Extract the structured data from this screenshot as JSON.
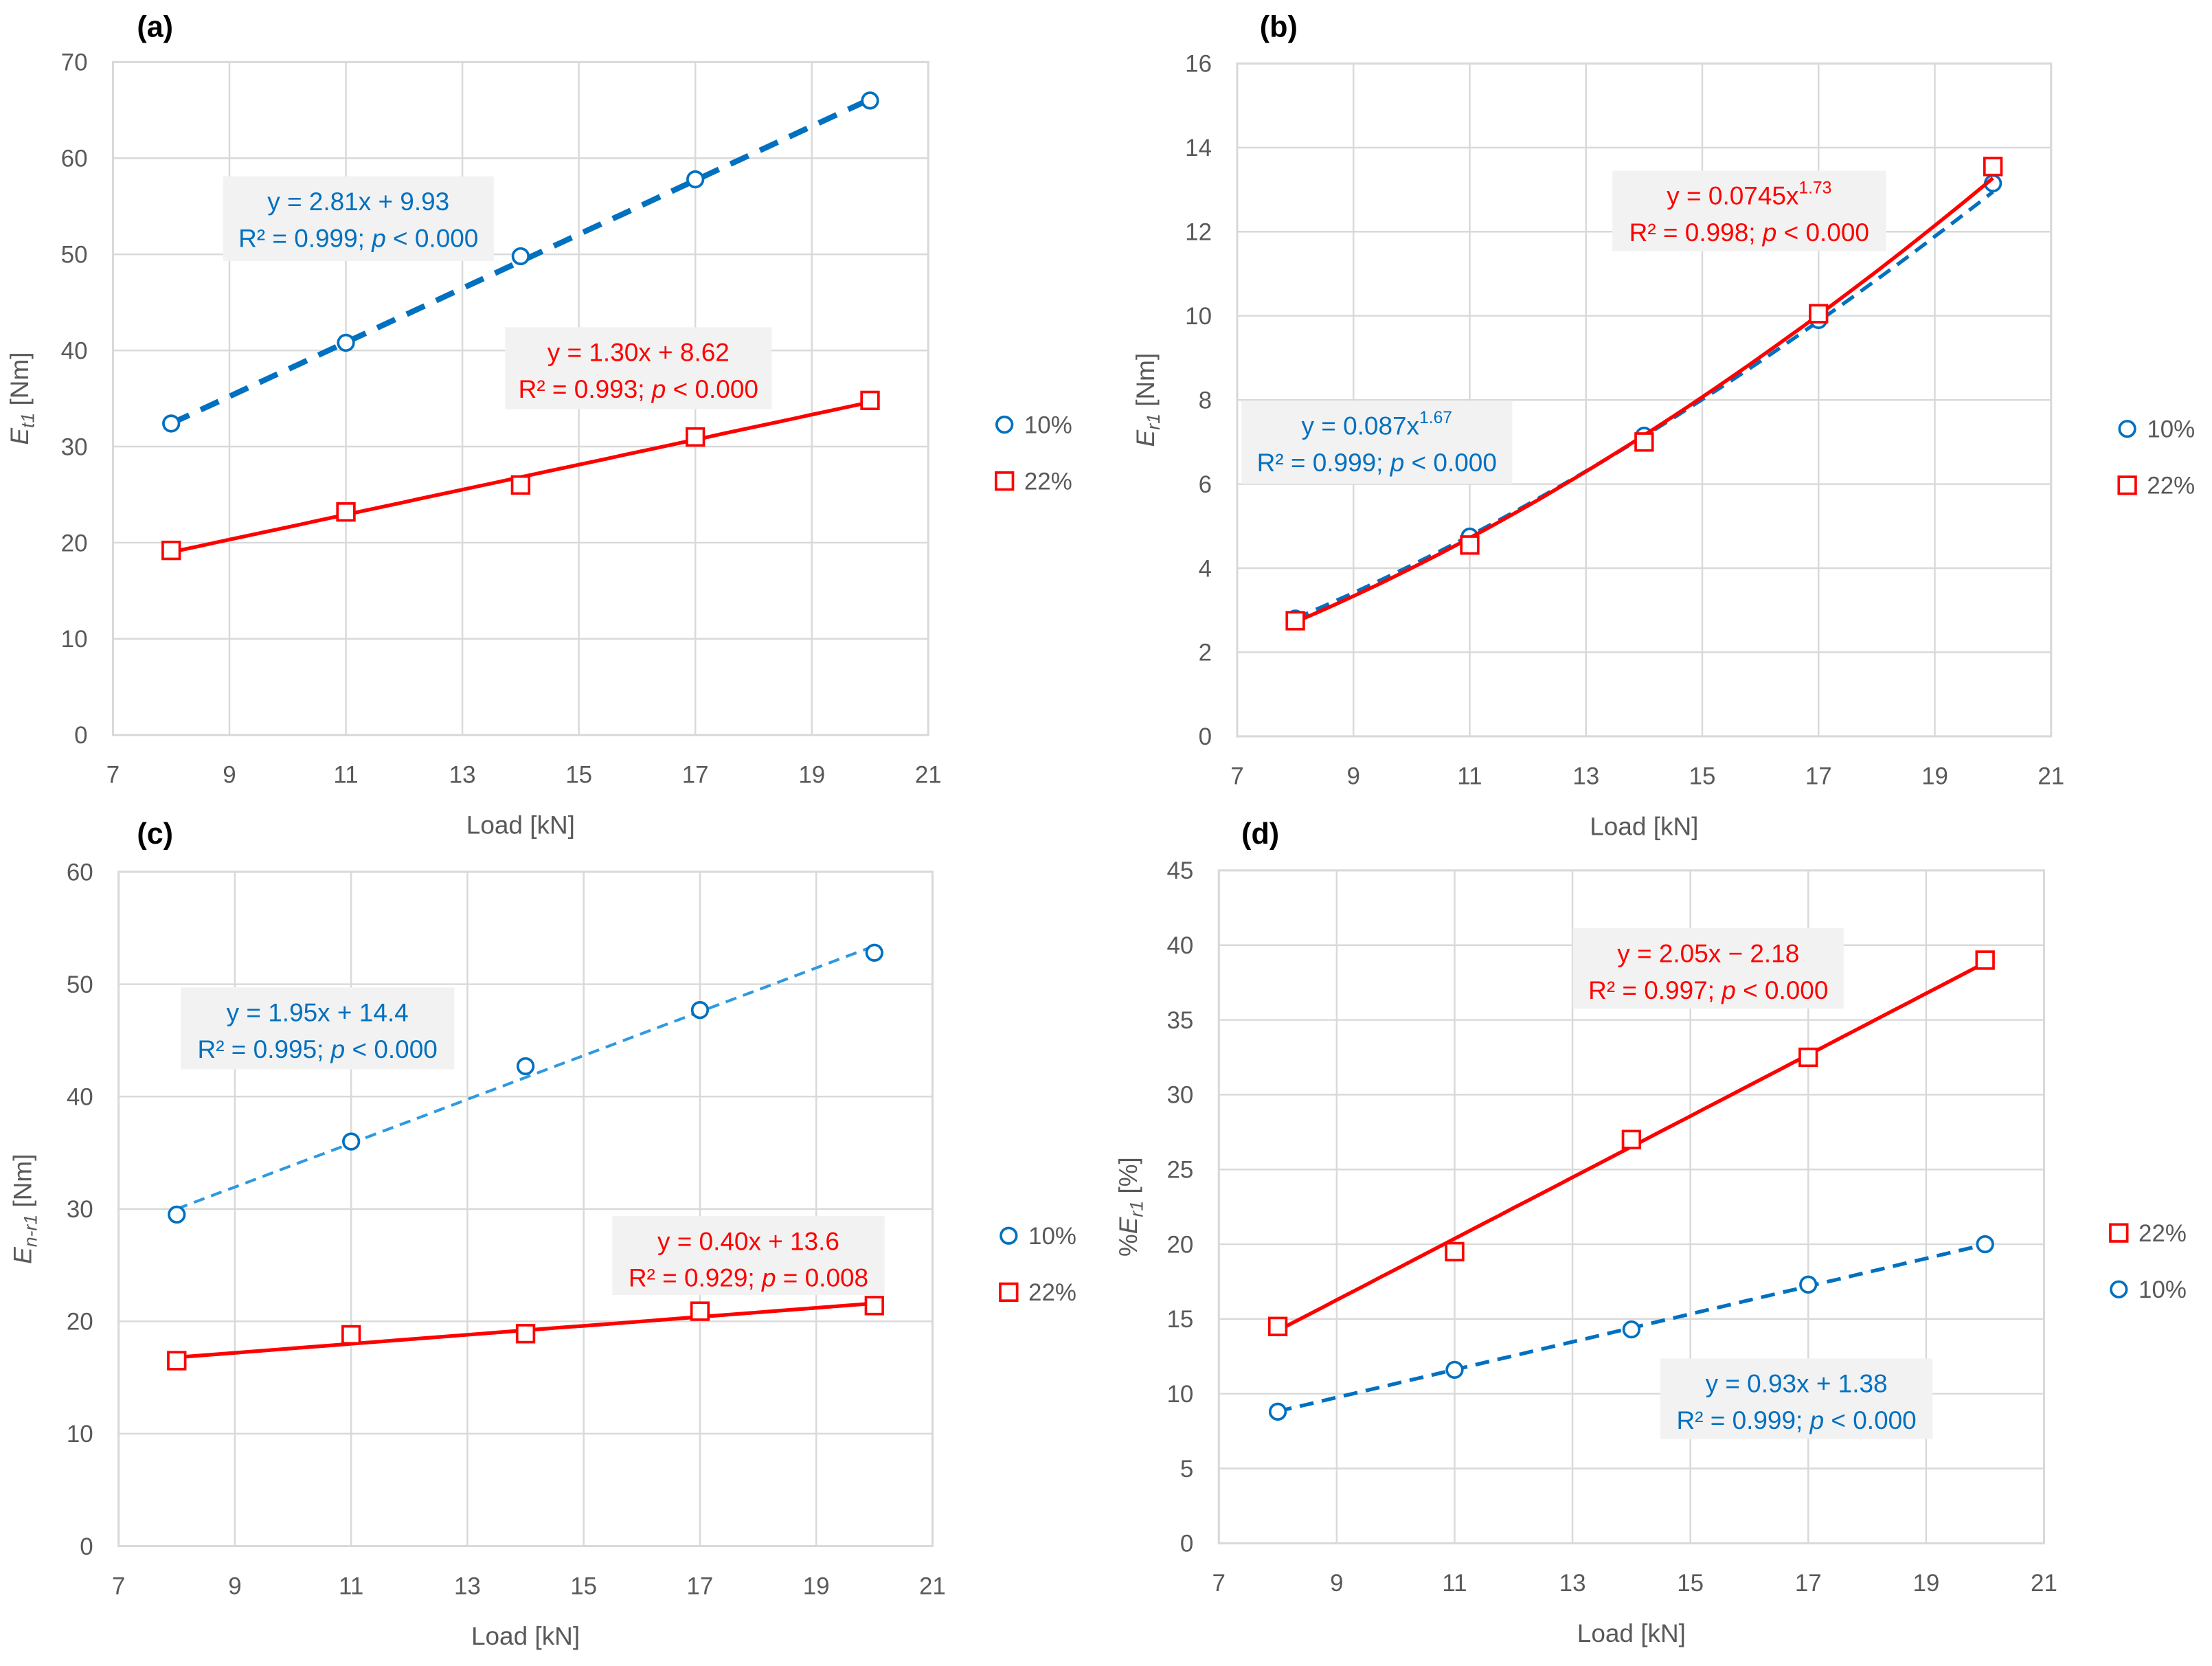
{
  "chart_data": [
    {
      "type": "scatter",
      "panel_label": "(a)",
      "xlabel": "Load [kN]",
      "ylabel": {
        "prefix": "",
        "symbol": "E",
        "sub": "t1",
        "unit": " [Nm]"
      },
      "xlim": [
        7,
        21
      ],
      "xticks": [
        7,
        9,
        11,
        13,
        15,
        17,
        19,
        21
      ],
      "ylim": [
        0,
        70
      ],
      "yticks": [
        0,
        10,
        20,
        30,
        40,
        50,
        60,
        70
      ],
      "grid": true,
      "legend_position": "right",
      "series": [
        {
          "name": "10%",
          "marker": "circle",
          "color": "#0070c0",
          "x": [
            8,
            11,
            14,
            17,
            20
          ],
          "y": [
            32.4,
            40.8,
            49.8,
            57.8,
            66.0
          ],
          "fit": {
            "kind": "linear",
            "a": 2.81,
            "b": 9.93,
            "style": "dash-thick",
            "eq": "y = 2.81x + 9.93",
            "exp": "",
            "r2_label": "R² = 0.999; p < 0.000"
          }
        },
        {
          "name": "22%",
          "marker": "square",
          "color": "#ff0000",
          "x": [
            8,
            11,
            14,
            17,
            20
          ],
          "y": [
            19.2,
            23.2,
            26.0,
            31.0,
            34.8
          ],
          "fit": {
            "kind": "linear",
            "a": 1.3,
            "b": 8.62,
            "style": "solid",
            "eq": "y = 1.30x + 8.62",
            "exp": "",
            "r2_label": "R² = 0.993; p < 0.000"
          }
        }
      ]
    },
    {
      "type": "scatter",
      "panel_label": "(b)",
      "xlabel": "Load [kN]",
      "ylabel": {
        "prefix": "",
        "symbol": "E",
        "sub": "r1",
        "unit": " [Nm]"
      },
      "xlim": [
        7,
        21
      ],
      "xticks": [
        7,
        9,
        11,
        13,
        15,
        17,
        19,
        21
      ],
      "ylim": [
        0,
        16
      ],
      "yticks": [
        0,
        2,
        4,
        6,
        8,
        10,
        12,
        14,
        16
      ],
      "grid": true,
      "legend_position": "right",
      "series": [
        {
          "name": "10%",
          "marker": "circle",
          "color": "#0070c0",
          "x": [
            8,
            11,
            14,
            17,
            20
          ],
          "y": [
            2.8,
            4.75,
            7.15,
            9.9,
            13.15
          ],
          "fit": {
            "kind": "power",
            "a": 0.087,
            "b": 1.67,
            "style": "dash",
            "eq": "y = 0.087x",
            "exp": "1.67",
            "r2_label": "R² = 0.999; p < 0.000"
          }
        },
        {
          "name": "22%",
          "marker": "square",
          "color": "#ff0000",
          "x": [
            8,
            11,
            14,
            17,
            20
          ],
          "y": [
            2.75,
            4.55,
            7.0,
            10.05,
            13.55
          ],
          "fit": {
            "kind": "power",
            "a": 0.0745,
            "b": 1.73,
            "style": "solid",
            "eq": "y = 0.0745x",
            "exp": "1.73",
            "r2_label": "R² = 0.998; p < 0.000"
          }
        }
      ]
    },
    {
      "type": "scatter",
      "panel_label": "(c)",
      "xlabel": "Load [kN]",
      "ylabel": {
        "prefix": "",
        "symbol": "E",
        "sub": "n-r1",
        "unit": " [Nm]"
      },
      "xlim": [
        7,
        21
      ],
      "xticks": [
        7,
        9,
        11,
        13,
        15,
        17,
        19,
        21
      ],
      "ylim": [
        0,
        60
      ],
      "yticks": [
        0,
        10,
        20,
        30,
        40,
        50,
        60
      ],
      "grid": true,
      "legend_position": "right",
      "series": [
        {
          "name": "10%",
          "marker": "circle",
          "color": "#0070c0",
          "x": [
            8,
            11,
            14,
            17,
            20
          ],
          "y": [
            29.5,
            36.0,
            42.7,
            47.7,
            52.8
          ],
          "fit": {
            "kind": "linear",
            "a": 1.95,
            "b": 14.4,
            "style": "dash-thin",
            "eq": "y = 1.95x + 14.4",
            "exp": "",
            "r2_label": "R² = 0.995; p < 0.000"
          }
        },
        {
          "name": "22%",
          "marker": "square",
          "color": "#ff0000",
          "x": [
            8,
            11,
            14,
            17,
            20
          ],
          "y": [
            16.5,
            18.8,
            18.9,
            20.9,
            21.4
          ],
          "fit": {
            "kind": "linear",
            "a": 0.4,
            "b": 13.6,
            "style": "solid",
            "eq": "y = 0.40x + 13.6",
            "exp": "",
            "r2_label": "R² = 0.929; p = 0.008"
          }
        }
      ]
    },
    {
      "type": "scatter",
      "panel_label": "(d)",
      "xlabel": "Load [kN]",
      "ylabel": {
        "prefix": "%",
        "symbol": "E",
        "sub": "r1",
        "unit": " [%]"
      },
      "xlim": [
        7,
        21
      ],
      "xticks": [
        7,
        9,
        11,
        13,
        15,
        17,
        19,
        21
      ],
      "ylim": [
        0,
        45
      ],
      "yticks": [
        0,
        5,
        10,
        15,
        20,
        25,
        30,
        35,
        40,
        45
      ],
      "grid": true,
      "legend_position": "right",
      "series": [
        {
          "name": "22%",
          "marker": "square",
          "color": "#ff0000",
          "x": [
            8,
            11,
            14,
            17,
            20
          ],
          "y": [
            14.5,
            19.5,
            27.0,
            32.5,
            39.0
          ],
          "fit": {
            "kind": "linear",
            "a": 2.05,
            "b": -2.18,
            "style": "solid",
            "eq": "y = 2.05x − 2.18",
            "exp": "",
            "r2_label": "R² = 0.997; p < 0.000"
          }
        },
        {
          "name": "10%",
          "marker": "circle",
          "color": "#0070c0",
          "x": [
            8,
            11,
            14,
            17,
            20
          ],
          "y": [
            8.8,
            11.6,
            14.3,
            17.3,
            20.0
          ],
          "fit": {
            "kind": "linear",
            "a": 0.93,
            "b": 1.38,
            "style": "dash",
            "eq": "y = 0.93x + 1.38",
            "exp": "",
            "r2_label": "R² = 0.999; p < 0.000"
          }
        }
      ]
    }
  ]
}
